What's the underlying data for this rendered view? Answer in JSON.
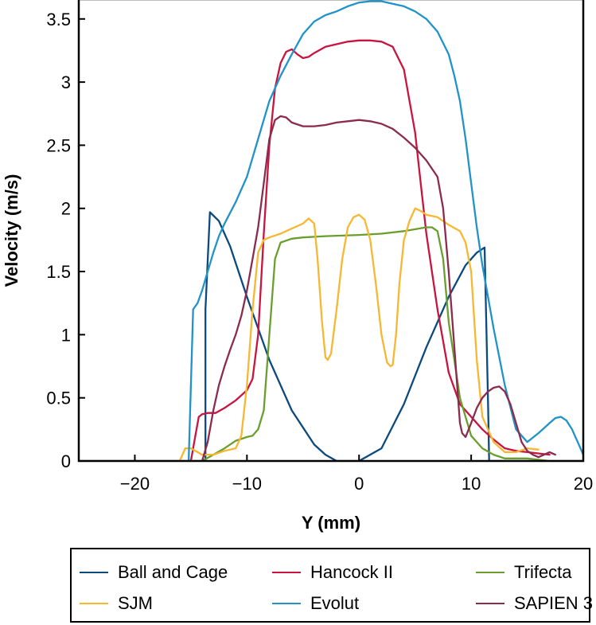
{
  "chart_data": {
    "type": "line",
    "title": "",
    "xlabel": "Y (mm)",
    "ylabel": "Velocity (m/s)",
    "xlim": [
      -25,
      20
    ],
    "ylim": [
      0,
      3.65
    ],
    "x_ticks": [
      -20,
      -10,
      0,
      10,
      20
    ],
    "x_tick_labels": [
      "−20",
      "−10",
      "0",
      "10",
      "20"
    ],
    "y_ticks": [
      0,
      0.5,
      1,
      1.5,
      2,
      2.5,
      3,
      3.5
    ],
    "y_tick_labels": [
      "0",
      "0.5",
      "1",
      "1.5",
      "2",
      "2.5",
      "3",
      "3.5"
    ],
    "legend_position": "bottom",
    "series": [
      {
        "name": "Ball and Cage",
        "color": "#0c4a7e",
        "x": [
          -25,
          -13.7,
          -13.7,
          -13.3,
          -12.5,
          -11.5,
          -10,
          -8,
          -6,
          -4,
          -3,
          -2,
          0,
          2,
          4,
          6,
          8,
          9.5,
          10.5,
          11.2,
          11.5,
          11.6,
          20
        ],
        "y": [
          0,
          0,
          1.2,
          1.97,
          1.9,
          1.7,
          1.3,
          0.8,
          0.4,
          0.13,
          0.05,
          0,
          0,
          0.1,
          0.45,
          0.9,
          1.3,
          1.55,
          1.65,
          1.69,
          0.5,
          0,
          0
        ]
      },
      {
        "name": "Hancock II",
        "color": "#c8143f",
        "x": [
          -15,
          -14.6,
          -14.3,
          -14,
          -13.5,
          -12.8,
          -12,
          -11,
          -10,
          -9.5,
          -9,
          -8.5,
          -8,
          -7.5,
          -7,
          -6.5,
          -6,
          -5.5,
          -5,
          -4.5,
          -4,
          -3,
          -2,
          -1,
          0,
          1,
          2,
          3,
          4,
          5,
          5.5,
          6,
          7,
          8,
          9,
          10,
          11,
          12,
          13,
          14,
          15,
          16,
          17
        ],
        "y": [
          0,
          0.2,
          0.35,
          0.37,
          0.38,
          0.38,
          0.42,
          0.48,
          0.56,
          0.65,
          1,
          1.8,
          2.5,
          2.95,
          3.15,
          3.24,
          3.26,
          3.22,
          3.19,
          3.2,
          3.23,
          3.28,
          3.3,
          3.32,
          3.33,
          3.33,
          3.32,
          3.28,
          3.1,
          2.6,
          2.2,
          1.8,
          1.2,
          0.7,
          0.45,
          0.35,
          0.25,
          0.17,
          0.1,
          0.08,
          0.07,
          0.06,
          0.05
        ]
      },
      {
        "name": "Trifecta",
        "color": "#6a9e2e",
        "x": [
          -14,
          -13,
          -12,
          -11,
          -10,
          -9.5,
          -9,
          -8.5,
          -8,
          -7.5,
          -7,
          -6,
          -5,
          -3,
          0,
          2,
          4,
          6,
          6.5,
          7,
          7.5,
          8,
          9,
          10,
          11,
          12,
          13,
          14,
          15,
          16,
          17
        ],
        "y": [
          0,
          0.05,
          0.1,
          0.16,
          0.19,
          0.2,
          0.25,
          0.4,
          1,
          1.6,
          1.73,
          1.76,
          1.77,
          1.78,
          1.79,
          1.8,
          1.82,
          1.85,
          1.85,
          1.82,
          1.6,
          1.1,
          0.5,
          0.2,
          0.1,
          0.05,
          0.02,
          0.02,
          0.02,
          0.01,
          0
        ]
      },
      {
        "name": "SJM",
        "color": "#f7b733",
        "x": [
          -16,
          -15.5,
          -15,
          -14,
          -13,
          -12,
          -11,
          -10.5,
          -10,
          -9.5,
          -9,
          -8.5,
          -8,
          -7,
          -6,
          -5,
          -4.5,
          -4,
          -3.7,
          -3.3,
          -3,
          -2.8,
          -2.5,
          -2,
          -1.5,
          -1,
          -0.5,
          0,
          0.5,
          1,
          1.5,
          2,
          2.5,
          2.8,
          3,
          3.3,
          3.6,
          4,
          4.5,
          5,
          5.5,
          6,
          7,
          8,
          9,
          9.5,
          10,
          10.5,
          11,
          12,
          13,
          14,
          15,
          16
        ],
        "y": [
          0,
          0.1,
          0.1,
          0.05,
          0.05,
          0.08,
          0.1,
          0.2,
          0.6,
          1.2,
          1.65,
          1.75,
          1.77,
          1.8,
          1.84,
          1.88,
          1.92,
          1.88,
          1.6,
          1.1,
          0.82,
          0.8,
          0.85,
          1.2,
          1.6,
          1.85,
          1.93,
          1.95,
          1.91,
          1.75,
          1.4,
          1,
          0.78,
          0.75,
          0.76,
          1,
          1.4,
          1.75,
          1.9,
          2.0,
          1.98,
          1.95,
          1.93,
          1.87,
          1.82,
          1.73,
          1.5,
          0.8,
          0.35,
          0.15,
          0.07,
          0.07,
          0.1,
          0.09
        ]
      },
      {
        "name": "Evolut",
        "color": "#2193c8",
        "x": [
          -15.2,
          -14.8,
          -14.4,
          -14,
          -13.5,
          -13,
          -12.5,
          -12,
          -11,
          -10,
          -9,
          -8,
          -7,
          -6,
          -5,
          -4,
          -3,
          -2,
          -1,
          0,
          1,
          2,
          3,
          4,
          5,
          6,
          7,
          8,
          8.5,
          9,
          9.5,
          10,
          10.5,
          11,
          12,
          13,
          14,
          15,
          16,
          17,
          17.5,
          18,
          18.5,
          19,
          19.5,
          20
        ],
        "y": [
          0,
          1.2,
          1.25,
          1.35,
          1.5,
          1.65,
          1.78,
          1.88,
          2.05,
          2.25,
          2.55,
          2.85,
          3.05,
          3.22,
          3.38,
          3.48,
          3.53,
          3.56,
          3.6,
          3.63,
          3.64,
          3.64,
          3.62,
          3.6,
          3.56,
          3.5,
          3.4,
          3.22,
          3.05,
          2.85,
          2.55,
          2.2,
          1.85,
          1.55,
          1.05,
          0.6,
          0.25,
          0.15,
          0.22,
          0.3,
          0.34,
          0.35,
          0.32,
          0.25,
          0.15,
          0.05
        ]
      },
      {
        "name": "SAPIEN 3",
        "color": "#8b2c4e",
        "x": [
          -14,
          -13.5,
          -13,
          -12.5,
          -12,
          -11.5,
          -11,
          -10.5,
          -10,
          -9.5,
          -9,
          -8.5,
          -8,
          -7.5,
          -7,
          -6.5,
          -6,
          -5,
          -4,
          -3,
          -2,
          -1,
          0,
          1,
          2,
          3,
          4,
          5,
          6,
          7,
          7.5,
          8,
          8.5,
          9,
          9.2,
          9.5,
          10,
          10.5,
          11,
          11.5,
          12,
          12.5,
          13,
          13.5,
          14,
          14.5,
          15,
          15.5,
          16,
          16.5,
          17,
          17.5
        ],
        "y": [
          0,
          0.15,
          0.4,
          0.6,
          0.75,
          0.88,
          1,
          1.15,
          1.35,
          1.6,
          1.85,
          2.2,
          2.55,
          2.7,
          2.73,
          2.72,
          2.68,
          2.65,
          2.65,
          2.66,
          2.68,
          2.69,
          2.7,
          2.69,
          2.67,
          2.63,
          2.56,
          2.48,
          2.38,
          2.25,
          2.0,
          1.5,
          0.9,
          0.3,
          0.22,
          0.19,
          0.3,
          0.42,
          0.5,
          0.55,
          0.58,
          0.59,
          0.55,
          0.45,
          0.3,
          0.15,
          0.08,
          0.05,
          0.03,
          0.05,
          0.07,
          0.05
        ]
      }
    ]
  }
}
